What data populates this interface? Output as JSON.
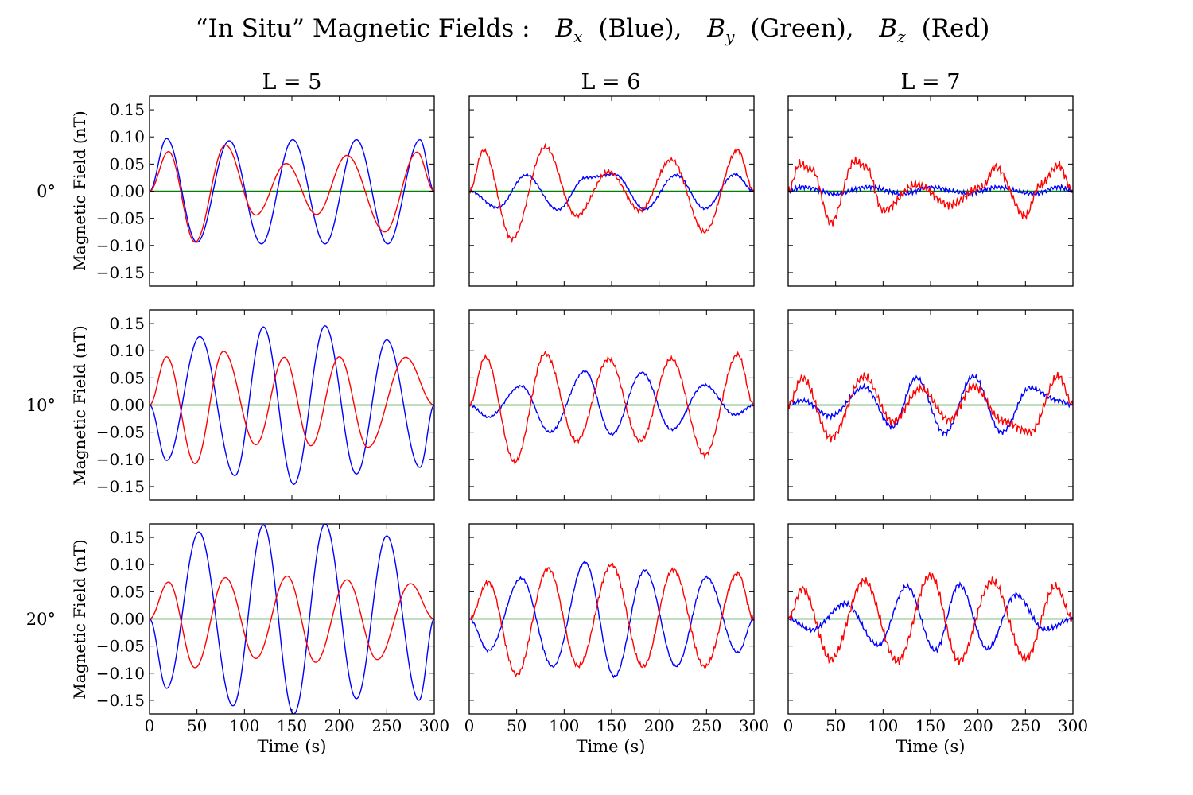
{
  "title": {
    "part1": "“In Situ” Magnetic Fields :",
    "bx_sym": "B",
    "bx_sub": "x",
    "bx_color": "(Blue),",
    "by_sym": "B",
    "by_sub": "y",
    "by_color": "(Green),",
    "bz_sym": "B",
    "bz_sub": "z",
    "bz_color": "(Red)"
  },
  "columns": [
    {
      "label": "L = 5"
    },
    {
      "label": "L = 6"
    },
    {
      "label": "L = 7"
    }
  ],
  "rows": [
    {
      "label": "0°"
    },
    {
      "label": "10°"
    },
    {
      "label": "20°"
    }
  ],
  "ylabel": "Magnetic  Field  (nT)",
  "xlabel": "Time  (s)",
  "colors": {
    "Bx": "#0000ff",
    "By": "#008000",
    "Bz": "#ff0000"
  },
  "chart_data": {
    "type": "line",
    "layout": "3x3 grid",
    "x_unit": "s",
    "y_unit": "nT",
    "xlim": [
      0,
      300
    ],
    "ylim": [
      -0.175,
      0.175
    ],
    "x_ticks": [
      0,
      50,
      100,
      150,
      200,
      250,
      300
    ],
    "x_tick_labels": [
      "0",
      "50",
      "100",
      "150",
      "200",
      "250",
      "300"
    ],
    "y_ticks": [
      -0.15,
      -0.1,
      -0.05,
      0.0,
      0.05,
      0.1,
      0.15
    ],
    "y_tick_labels": [
      "−0.15",
      "−0.10",
      "−0.05",
      "0.00",
      "0.05",
      "0.10",
      "0.15"
    ],
    "panels": [
      {
        "row": 0,
        "col": 0,
        "Bx": {
          "times": [
            0,
            18,
            50,
            84,
            118,
            151,
            185,
            218,
            251,
            285,
            300
          ],
          "values": [
            0,
            0.097,
            -0.094,
            0.093,
            -0.097,
            0.095,
            -0.097,
            0.095,
            -0.097,
            0.095,
            0
          ]
        },
        "By": {
          "times": [
            0,
            300
          ],
          "values": [
            0,
            0
          ]
        },
        "Bz": {
          "times": [
            0,
            20,
            48,
            80,
            112,
            144,
            176,
            208,
            248,
            282,
            300
          ],
          "values": [
            0,
            0.073,
            -0.094,
            0.085,
            -0.044,
            0.051,
            -0.043,
            0.066,
            -0.075,
            0.072,
            0
          ]
        }
      },
      {
        "row": 0,
        "col": 1,
        "Bx": {
          "times": [
            0,
            30,
            60,
            93,
            123,
            153,
            185,
            218,
            248,
            280,
            300
          ],
          "values": [
            0,
            -0.03,
            0.03,
            -0.034,
            0.025,
            0.031,
            -0.033,
            0.03,
            -0.032,
            0.031,
            0
          ]
        },
        "By": {
          "times": [
            0,
            300
          ],
          "values": [
            0,
            0
          ]
        },
        "Bz": {
          "times": [
            0,
            15,
            45,
            80,
            113,
            147,
            180,
            213,
            248,
            283,
            300
          ],
          "values": [
            0,
            0.075,
            -0.088,
            0.081,
            -0.045,
            0.036,
            -0.035,
            0.058,
            -0.075,
            0.075,
            0
          ]
        }
      },
      {
        "row": 1,
        "col": 0,
        "Bx": {
          "times": [
            0,
            18,
            53,
            90,
            120,
            152,
            185,
            218,
            250,
            285,
            300
          ],
          "values": [
            0,
            -0.102,
            0.126,
            -0.13,
            0.144,
            -0.146,
            0.146,
            -0.127,
            0.12,
            -0.115,
            0
          ]
        },
        "By": {
          "times": [
            0,
            300
          ],
          "values": [
            0,
            0
          ]
        },
        "Bz": {
          "times": [
            0,
            18,
            48,
            78,
            112,
            142,
            170,
            200,
            230,
            270,
            300
          ],
          "values": [
            0,
            0.089,
            -0.108,
            0.099,
            -0.073,
            0.088,
            -0.075,
            0.089,
            -0.078,
            0.088,
            0
          ]
        }
      },
      {
        "row": 1,
        "col": 1,
        "Bx": {
          "times": [
            0,
            20,
            55,
            85,
            122,
            150,
            182,
            213,
            248,
            280,
            300
          ],
          "values": [
            0,
            -0.022,
            0.035,
            -0.05,
            0.062,
            -0.054,
            0.06,
            -0.045,
            0.037,
            -0.018,
            0
          ]
        },
        "By": {
          "times": [
            0,
            300
          ],
          "values": [
            0,
            0
          ]
        },
        "Bz": {
          "times": [
            0,
            17,
            48,
            80,
            113,
            147,
            180,
            213,
            248,
            283,
            300
          ],
          "values": [
            0,
            0.088,
            -0.105,
            0.095,
            -0.066,
            0.085,
            -0.066,
            0.085,
            -0.092,
            0.093,
            0
          ]
        }
      },
      {
        "row": 2,
        "col": 0,
        "Bx": {
          "times": [
            0,
            18,
            52,
            88,
            120,
            152,
            185,
            218,
            250,
            284,
            300
          ],
          "values": [
            0,
            -0.128,
            0.16,
            -0.16,
            0.173,
            -0.175,
            0.175,
            -0.147,
            0.153,
            -0.15,
            0
          ]
        },
        "By": {
          "times": [
            0,
            300
          ],
          "values": [
            0,
            0
          ]
        },
        "Bz": {
          "times": [
            0,
            20,
            48,
            80,
            112,
            145,
            175,
            208,
            240,
            275,
            300
          ],
          "values": [
            0,
            0.068,
            -0.09,
            0.076,
            -0.073,
            0.079,
            -0.08,
            0.072,
            -0.075,
            0.065,
            0
          ]
        }
      },
      {
        "row": 2,
        "col": 1,
        "Bx": {
          "times": [
            0,
            20,
            55,
            88,
            122,
            153,
            185,
            218,
            250,
            283,
            300
          ],
          "values": [
            0,
            -0.058,
            0.075,
            -0.088,
            0.104,
            -0.106,
            0.09,
            -0.087,
            0.077,
            -0.062,
            0
          ]
        },
        "By": {
          "times": [
            0,
            300
          ],
          "values": [
            0,
            0
          ]
        },
        "Bz": {
          "times": [
            0,
            20,
            50,
            83,
            115,
            150,
            183,
            215,
            248,
            283,
            300
          ],
          "values": [
            0,
            0.068,
            -0.103,
            0.093,
            -0.087,
            0.1,
            -0.088,
            0.091,
            -0.088,
            0.084,
            0
          ]
        }
      },
      {
        "row": 0,
        "col": 2,
        "Bx": {
          "times": [
            0,
            15,
            50,
            85,
            120,
            150,
            190,
            220,
            260,
            285,
            300
          ],
          "values": [
            0,
            0.008,
            -0.005,
            0.008,
            -0.005,
            0.007,
            -0.004,
            0.007,
            -0.005,
            0.008,
            0
          ]
        },
        "By": {
          "times": [
            0,
            300
          ],
          "values": [
            0,
            0
          ]
        },
        "Bz": {
          "times": [
            0,
            12,
            25,
            45,
            70,
            82,
            100,
            135,
            170,
            205,
            218,
            250,
            265,
            285,
            300
          ],
          "values": [
            0,
            0.05,
            0.04,
            -0.058,
            0.055,
            0.045,
            -0.035,
            0.012,
            -0.025,
            0.008,
            0.045,
            -0.045,
            0.01,
            0.048,
            0
          ]
        }
      },
      {
        "row": 1,
        "col": 2,
        "Bx": {
          "times": [
            0,
            15,
            45,
            80,
            110,
            135,
            165,
            195,
            225,
            255,
            285,
            300
          ],
          "values": [
            0,
            0.008,
            -0.02,
            0.033,
            -0.04,
            0.05,
            -0.052,
            0.053,
            -0.05,
            0.032,
            0.008,
            0
          ]
        },
        "By": {
          "times": [
            0,
            300
          ],
          "values": [
            0,
            0
          ]
        },
        "Bz": {
          "times": [
            0,
            15,
            45,
            80,
            110,
            140,
            170,
            195,
            225,
            255,
            285,
            300
          ],
          "values": [
            0,
            0.05,
            -0.06,
            0.053,
            -0.03,
            0.03,
            -0.028,
            0.035,
            -0.028,
            -0.05,
            0.053,
            0
          ]
        }
      },
      {
        "row": 2,
        "col": 2,
        "Bx": {
          "times": [
            0,
            25,
            60,
            95,
            125,
            155,
            180,
            210,
            240,
            270,
            300
          ],
          "values": [
            0,
            -0.02,
            0.028,
            -0.048,
            0.06,
            -0.058,
            0.063,
            -0.055,
            0.045,
            -0.02,
            0
          ]
        },
        "By": {
          "times": [
            0,
            300
          ],
          "values": [
            0,
            0
          ]
        },
        "Bz": {
          "times": [
            0,
            15,
            45,
            80,
            115,
            150,
            180,
            215,
            250,
            282,
            300
          ],
          "values": [
            0,
            0.056,
            -0.075,
            0.07,
            -0.078,
            0.08,
            -0.077,
            0.07,
            -0.072,
            0.06,
            0
          ]
        }
      }
    ]
  }
}
